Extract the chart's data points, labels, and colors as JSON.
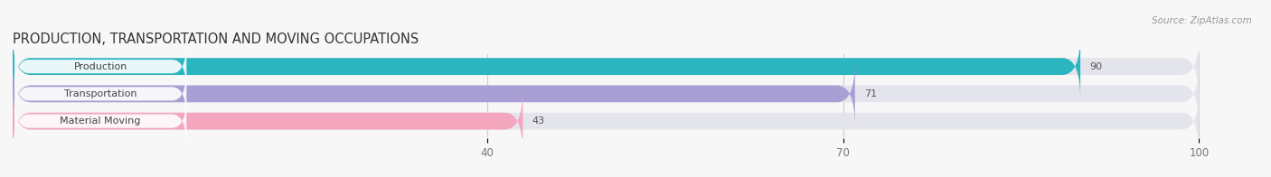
{
  "title": "PRODUCTION, TRANSPORTATION AND MOVING OCCUPATIONS",
  "source": "Source: ZipAtlas.com",
  "categories": [
    "Production",
    "Transportation",
    "Material Moving"
  ],
  "values": [
    90,
    71,
    43
  ],
  "bar_colors": [
    "#2ab5bf",
    "#a89fd4",
    "#f4a6be"
  ],
  "xlim_min": 0,
  "xlim_max": 105,
  "xticks": [
    40,
    70,
    100
  ],
  "title_fontsize": 10.5,
  "label_fontsize": 8,
  "value_fontsize": 8,
  "bar_height": 0.62,
  "bar_bg_color": "#e4e4ec",
  "label_bg_color": "#ffffff",
  "figsize": [
    14.06,
    1.96
  ],
  "dpi": 100
}
